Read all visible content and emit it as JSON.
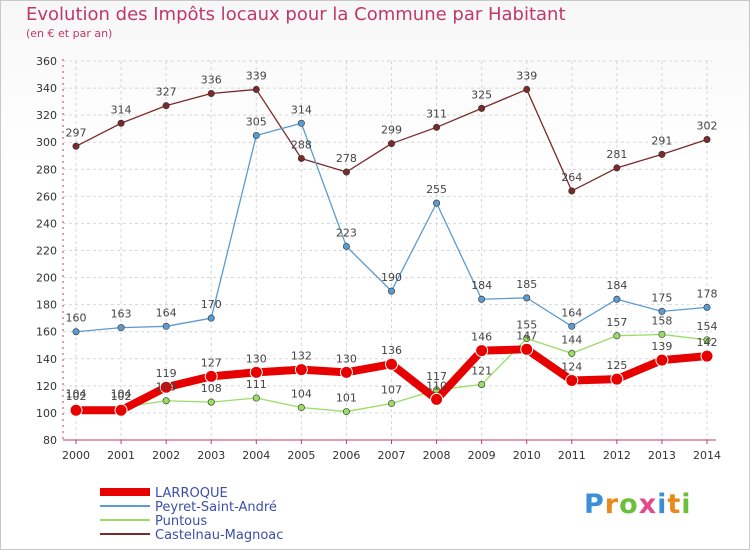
{
  "title": "Evolution des Impôts locaux pour la Commune par Habitant",
  "subtitle": "(en € et par an)",
  "logo": {
    "letters": [
      "P",
      "r",
      "o",
      "x",
      "i",
      "t",
      "i"
    ],
    "colors": [
      "#3a8fd6",
      "#e88a1a",
      "#6cbf3a",
      "#e34a8a",
      "#3a8fd6",
      "#e88a1a",
      "#6cbf3a"
    ]
  },
  "chart_data": {
    "type": "line",
    "x": [
      2000,
      2001,
      2002,
      2003,
      2004,
      2005,
      2006,
      2007,
      2008,
      2009,
      2010,
      2011,
      2012,
      2013,
      2014
    ],
    "ylim": [
      80,
      360
    ],
    "yticks": [
      80,
      100,
      120,
      140,
      160,
      180,
      200,
      220,
      240,
      260,
      280,
      300,
      320,
      340,
      360
    ],
    "grid": true,
    "legend_position": "bottom-left",
    "series": [
      {
        "name": "LARROQUE",
        "color": "#e60000",
        "values": [
          102,
          102,
          119,
          127,
          130,
          132,
          130,
          136,
          110,
          146,
          147,
          124,
          125,
          139,
          142
        ]
      },
      {
        "name": "Peyret-Saint-André",
        "color": "#5b9bd0",
        "values": [
          160,
          163,
          164,
          170,
          305,
          314,
          223,
          190,
          255,
          184,
          185,
          164,
          184,
          175,
          178
        ]
      },
      {
        "name": "Puntous",
        "color": "#99dd66",
        "values": [
          104,
          104,
          109,
          108,
          111,
          104,
          101,
          107,
          117,
          121,
          155,
          144,
          157,
          158,
          154
        ]
      },
      {
        "name": "Castelnau-Magnoac",
        "color": "#7a2a2a",
        "values": [
          297,
          314,
          327,
          336,
          339,
          288,
          278,
          299,
          311,
          325,
          339,
          264,
          281,
          291,
          302
        ]
      }
    ]
  }
}
